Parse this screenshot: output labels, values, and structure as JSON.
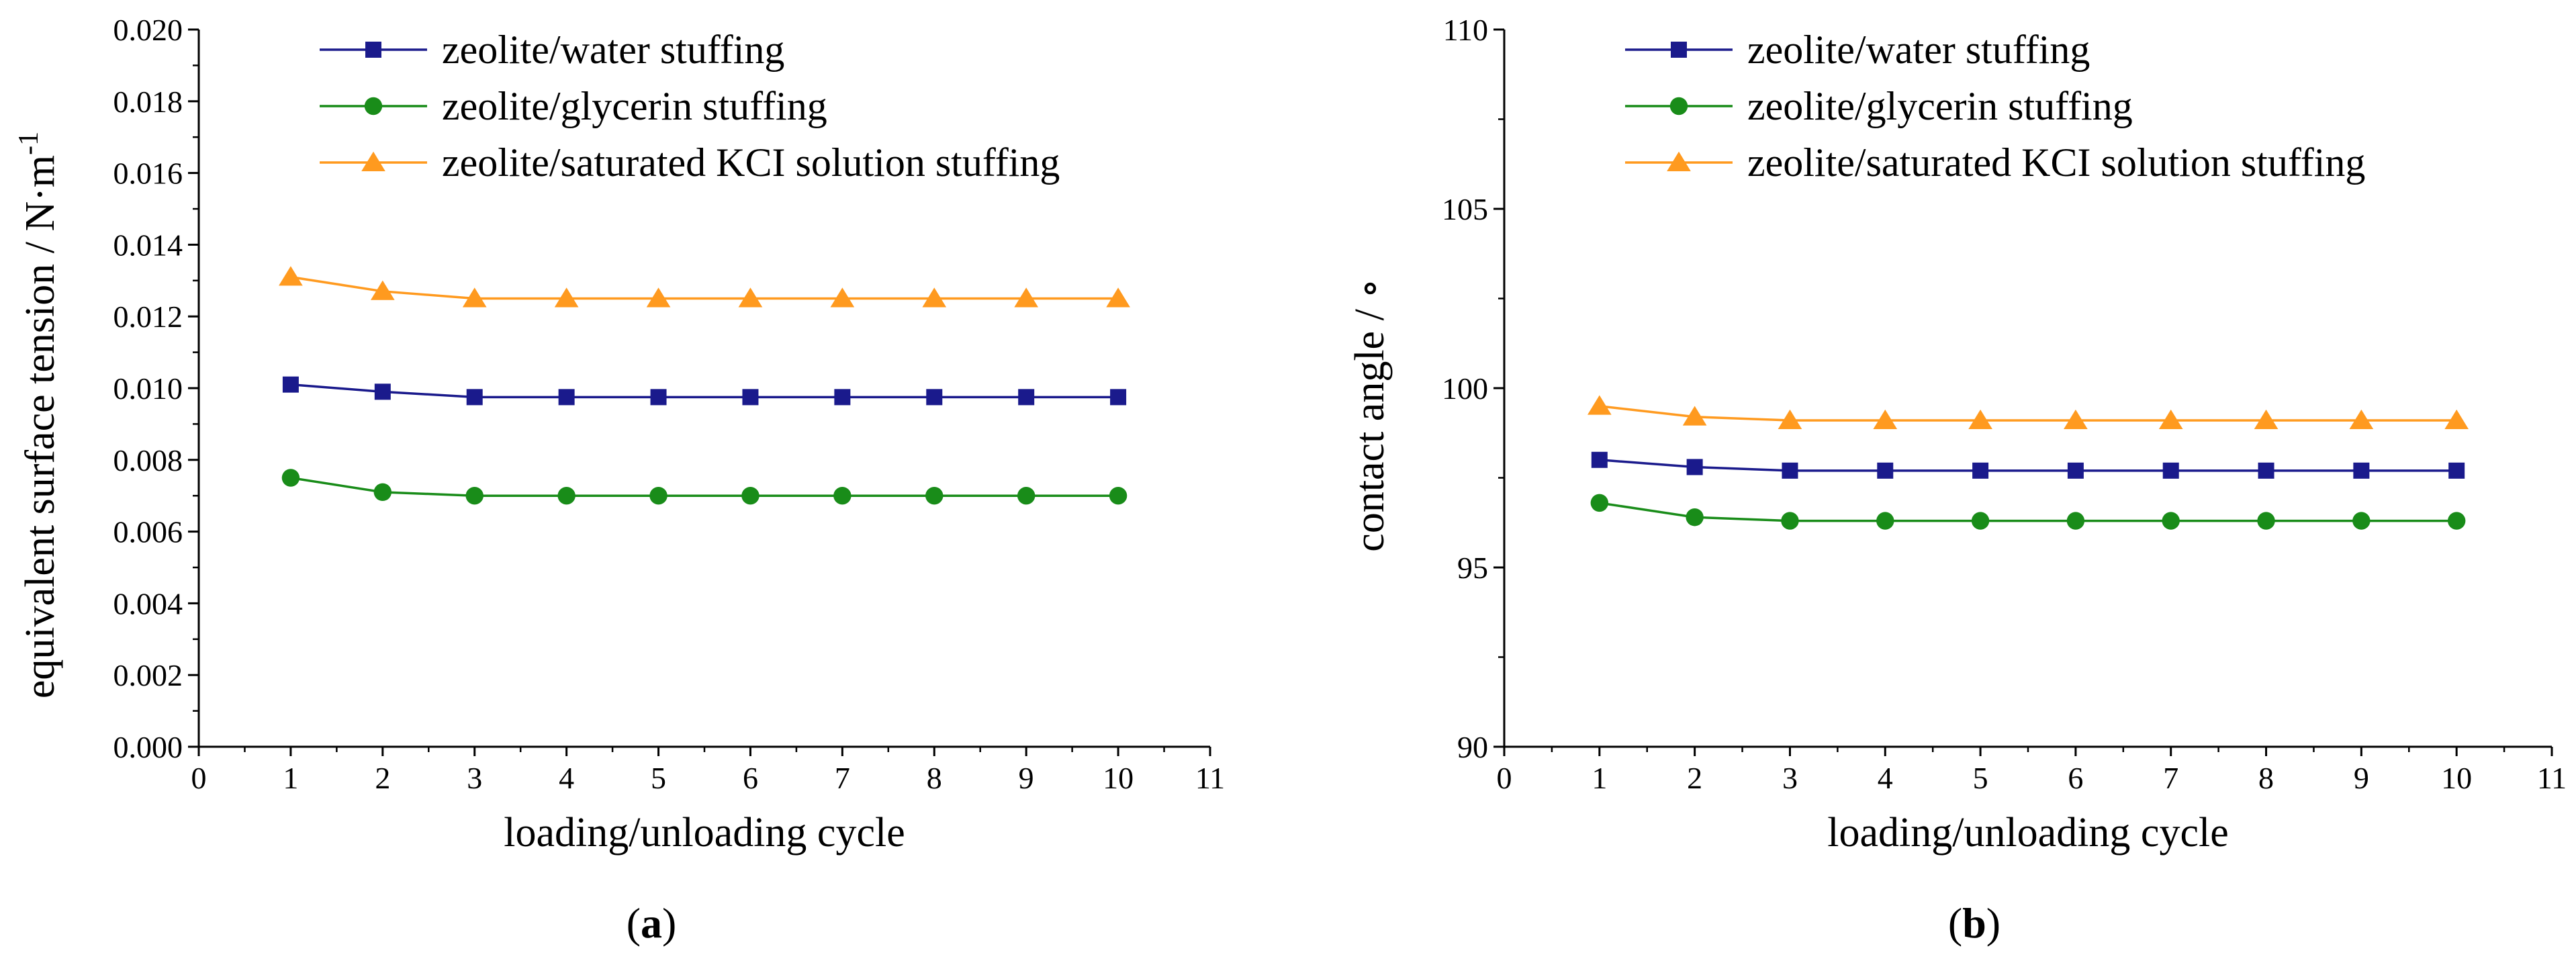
{
  "chart_data": [
    {
      "type": "line",
      "panel_label": "a",
      "xlabel": "loading/unloading cycle",
      "ylabel": "equivalent surface tension / N·m",
      "ylabel_sup": "-1",
      "xlim": [
        0,
        11
      ],
      "ylim": [
        0,
        0.02
      ],
      "x_ticks": [
        "0",
        "1",
        "2",
        "3",
        "4",
        "5",
        "6",
        "7",
        "8",
        "9",
        "10",
        "11"
      ],
      "y_ticks": [
        "0.000",
        "0.002",
        "0.004",
        "0.006",
        "0.008",
        "0.010",
        "0.012",
        "0.014",
        "0.016",
        "0.018",
        "0.020"
      ],
      "legend_position": "top-left",
      "x": [
        1,
        2,
        3,
        4,
        5,
        6,
        7,
        8,
        9,
        10
      ],
      "series": [
        {
          "name": "zeolite/water stuffing",
          "color": "#1a1a8c",
          "marker": "square",
          "values": [
            0.0101,
            0.0099,
            0.00975,
            0.00975,
            0.00975,
            0.00975,
            0.00975,
            0.00975,
            0.00975,
            0.00975
          ]
        },
        {
          "name": "zeolite/glycerin stuffing",
          "color": "#198c19",
          "marker": "circle",
          "values": [
            0.0075,
            0.0071,
            0.007,
            0.007,
            0.007,
            0.007,
            0.007,
            0.007,
            0.007,
            0.007
          ]
        },
        {
          "name": "zeolite/saturated KCI solution stuffing",
          "color": "#ff9a1f",
          "marker": "triangle",
          "values": [
            0.0131,
            0.0127,
            0.0125,
            0.0125,
            0.0125,
            0.0125,
            0.0125,
            0.0125,
            0.0125,
            0.0125
          ]
        }
      ]
    },
    {
      "type": "line",
      "panel_label": "b",
      "xlabel": "loading/unloading cycle",
      "ylabel": "contact angle / ∘",
      "xlim": [
        0,
        11
      ],
      "ylim": [
        90,
        110
      ],
      "x_ticks": [
        "0",
        "1",
        "2",
        "3",
        "4",
        "5",
        "6",
        "7",
        "8",
        "9",
        "10",
        "11"
      ],
      "y_ticks": [
        "90",
        "95",
        "100",
        "105",
        "110"
      ],
      "legend_position": "top-left",
      "x": [
        1,
        2,
        3,
        4,
        5,
        6,
        7,
        8,
        9,
        10
      ],
      "series": [
        {
          "name": "zeolite/water stuffing",
          "color": "#1a1a8c",
          "marker": "square",
          "values": [
            98.0,
            97.8,
            97.7,
            97.7,
            97.7,
            97.7,
            97.7,
            97.7,
            97.7,
            97.7
          ]
        },
        {
          "name": "zeolite/glycerin stuffing",
          "color": "#198c19",
          "marker": "circle",
          "values": [
            96.8,
            96.4,
            96.3,
            96.3,
            96.3,
            96.3,
            96.3,
            96.3,
            96.3,
            96.3
          ]
        },
        {
          "name": "zeolite/saturated KCI solution stuffing",
          "color": "#ff9a1f",
          "marker": "triangle",
          "values": [
            99.5,
            99.2,
            99.1,
            99.1,
            99.1,
            99.1,
            99.1,
            99.1,
            99.1,
            99.1
          ]
        }
      ]
    }
  ]
}
